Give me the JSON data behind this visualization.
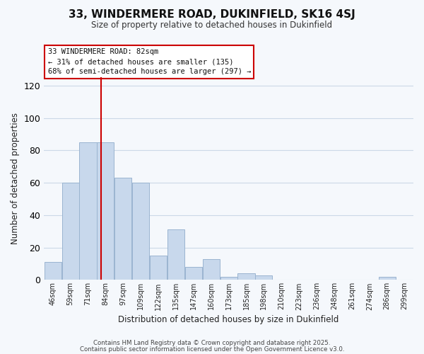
{
  "title": "33, WINDERMERE ROAD, DUKINFIELD, SK16 4SJ",
  "subtitle": "Size of property relative to detached houses in Dukinfield",
  "xlabel": "Distribution of detached houses by size in Dukinfield",
  "ylabel": "Number of detached properties",
  "bar_color": "#c8d8ec",
  "bar_edge_color": "#9ab4d0",
  "bins": [
    "46sqm",
    "59sqm",
    "71sqm",
    "84sqm",
    "97sqm",
    "109sqm",
    "122sqm",
    "135sqm",
    "147sqm",
    "160sqm",
    "173sqm",
    "185sqm",
    "198sqm",
    "210sqm",
    "223sqm",
    "236sqm",
    "248sqm",
    "261sqm",
    "274sqm",
    "286sqm",
    "299sqm"
  ],
  "values": [
    11,
    60,
    85,
    85,
    63,
    60,
    15,
    31,
    8,
    13,
    2,
    4,
    3,
    0,
    0,
    0,
    0,
    0,
    0,
    2,
    0
  ],
  "ylim": [
    0,
    125
  ],
  "yticks": [
    0,
    20,
    40,
    60,
    80,
    100,
    120
  ],
  "vline_color": "#cc0000",
  "annotation_title": "33 WINDERMERE ROAD: 82sqm",
  "annotation_line1": "← 31% of detached houses are smaller (135)",
  "annotation_line2": "68% of semi-detached houses are larger (297) →",
  "footer1": "Contains HM Land Registry data © Crown copyright and database right 2025.",
  "footer2": "Contains public sector information licensed under the Open Government Licence v3.0.",
  "bg_color": "#f5f8fc",
  "grid_color": "#ccd8e8"
}
